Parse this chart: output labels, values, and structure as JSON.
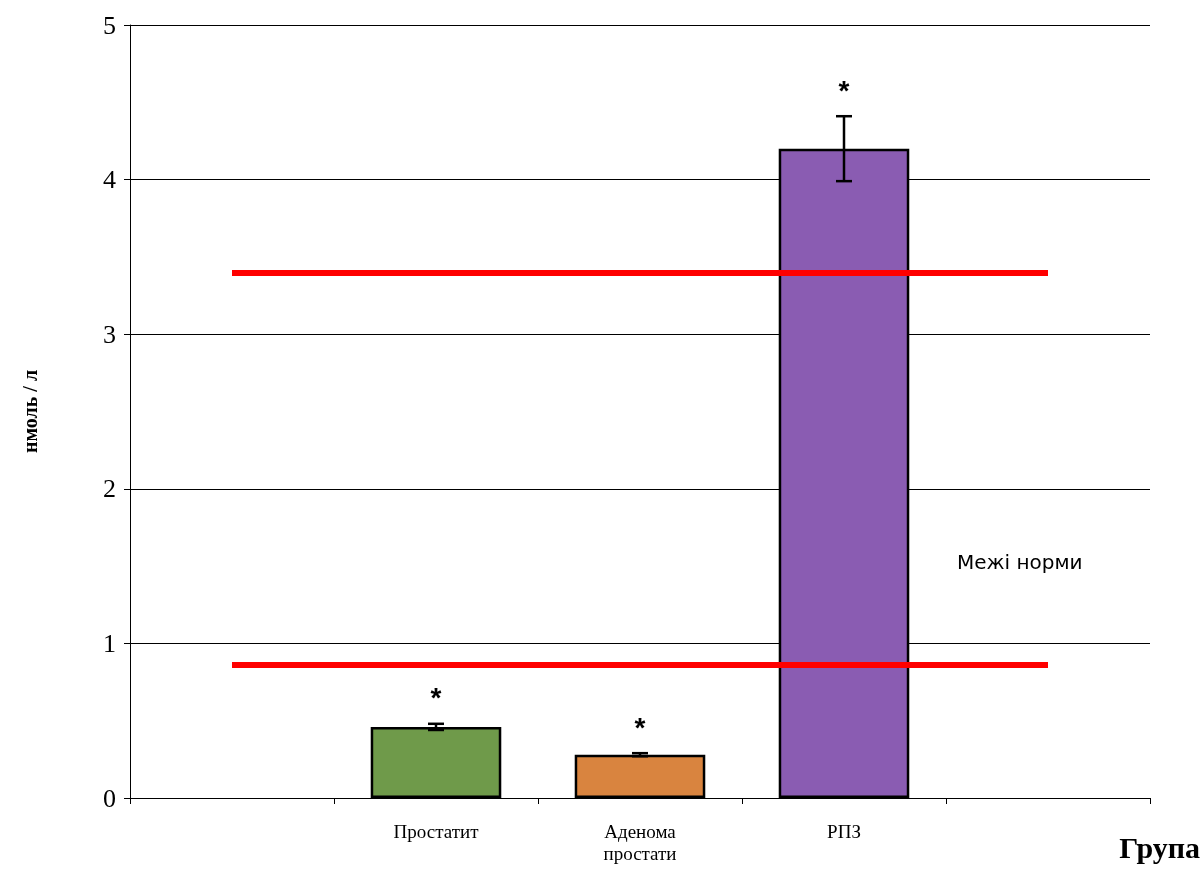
{
  "chart_data": {
    "type": "bar",
    "xlabel": "Група",
    "ylabel": "нмоль / л",
    "categories": [
      null,
      "Простатит",
      "Аденома простати",
      "РПЗ",
      null
    ],
    "values": [
      null,
      0.46,
      0.28,
      4.2,
      null
    ],
    "errors": [
      null,
      0.02,
      0.01,
      0.21,
      null
    ],
    "colors": [
      "#6f9a4a",
      "#6f9a4a",
      "#d9843f",
      "#8a5cb2",
      "#8a5cb2"
    ],
    "ylim": [
      0,
      5
    ],
    "yticks": [
      0,
      1,
      2,
      3,
      4,
      5
    ],
    "grid": "y",
    "ref_lines": [
      {
        "axis": "y",
        "value": 3.4,
        "color": "#ff0000"
      },
      {
        "axis": "y",
        "value": 0.86,
        "color": "#ff0000"
      }
    ],
    "annotations": [
      "*",
      "*",
      "*",
      "Межі норми"
    ]
  }
}
